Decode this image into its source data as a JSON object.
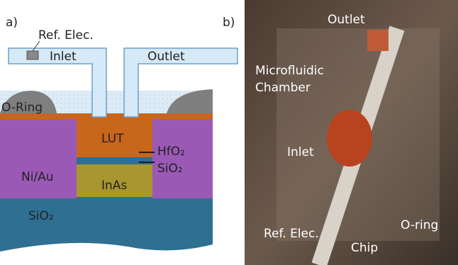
{
  "panel_a": {
    "label": "a)",
    "ref_elec": "Ref. Elec.",
    "inlet": "Inlet",
    "outlet": "Outlet",
    "o_ring": "O-Ring",
    "lut": "LUT",
    "hfo2": "HfO₂",
    "sio2_thin": "SiO₂",
    "ni_au": "Ni/Au",
    "inas": "InAs",
    "sio2_substrate": "SiO₂"
  },
  "panel_b": {
    "label": "b)",
    "outlet": "Outlet",
    "chamber": [
      "Microfluidic",
      "Chamber"
    ],
    "inlet": "Inlet",
    "o_ring": "O-ring",
    "chip": "Chip",
    "ref_elec": "Ref. Elec."
  }
}
